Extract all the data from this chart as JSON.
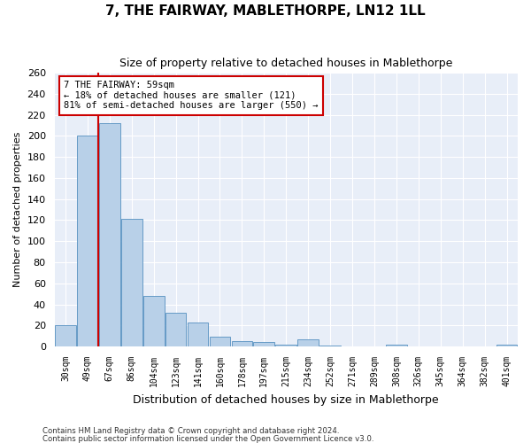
{
  "title": "7, THE FAIRWAY, MABLETHORPE, LN12 1LL",
  "subtitle": "Size of property relative to detached houses in Mablethorpe",
  "xlabel": "Distribution of detached houses by size in Mablethorpe",
  "ylabel": "Number of detached properties",
  "categories": [
    "30sqm",
    "49sqm",
    "67sqm",
    "86sqm",
    "104sqm",
    "123sqm",
    "141sqm",
    "160sqm",
    "178sqm",
    "197sqm",
    "215sqm",
    "234sqm",
    "252sqm",
    "271sqm",
    "289sqm",
    "308sqm",
    "326sqm",
    "345sqm",
    "364sqm",
    "382sqm",
    "401sqm"
  ],
  "values": [
    20,
    200,
    212,
    121,
    48,
    32,
    23,
    9,
    5,
    4,
    2,
    7,
    1,
    0,
    0,
    2,
    0,
    0,
    0,
    0,
    2
  ],
  "bar_color": "#b8d0e8",
  "bar_edgecolor": "#5590c0",
  "background_color": "#e8eef8",
  "grid_color": "#ffffff",
  "vline_color": "#cc0000",
  "annotation_text": "7 THE FAIRWAY: 59sqm\n← 18% of detached houses are smaller (121)\n81% of semi-detached houses are larger (550) →",
  "annotation_box_color": "#ffffff",
  "annotation_box_edgecolor": "#cc0000",
  "ylim": [
    0,
    260
  ],
  "yticks": [
    0,
    20,
    40,
    60,
    80,
    100,
    120,
    140,
    160,
    180,
    200,
    220,
    240,
    260
  ],
  "footer1": "Contains HM Land Registry data © Crown copyright and database right 2024.",
  "footer2": "Contains public sector information licensed under the Open Government Licence v3.0.",
  "title_fontsize": 11,
  "subtitle_fontsize": 9,
  "xlabel_fontsize": 9,
  "ylabel_fontsize": 8
}
